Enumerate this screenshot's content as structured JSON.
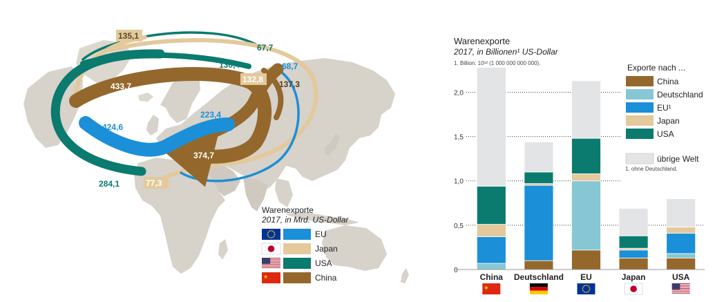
{
  "colors": {
    "China": "#94682c",
    "Deutschland": "#86c7d3",
    "EU": "#1b8fd8",
    "Japan": "#e3c99b",
    "USA": "#0a7b6e",
    "uebrige": "#e2e4e6",
    "map_land": "#d7d2ca",
    "map_land_dark": "#c6c0b6"
  },
  "map": {
    "legend_title": "Warenexporte",
    "legend_subtitle": "2017, in Mrd. US-Dollar",
    "legend_items": [
      {
        "label": "EU",
        "color_key": "EU",
        "flag": "eu-flag"
      },
      {
        "label": "Japan",
        "color_key": "Japan",
        "flag": "japan-flag"
      },
      {
        "label": "USA",
        "color_key": "USA",
        "flag": "usa-flag"
      },
      {
        "label": "China",
        "color_key": "China",
        "flag": "china-flag"
      }
    ],
    "flows": [
      {
        "label": "135,1",
        "series": "Japan"
      },
      {
        "label": "67,7",
        "series": "USA"
      },
      {
        "label": "130,4",
        "series": "USA"
      },
      {
        "label": "68,7",
        "series": "EU"
      },
      {
        "label": "132,8",
        "series": "Japan"
      },
      {
        "label": "137,3",
        "series": "China"
      },
      {
        "label": "433,7",
        "series": "China"
      },
      {
        "label": "424,6",
        "series": "EU"
      },
      {
        "label": "223,4",
        "series": "EU"
      },
      {
        "label": "374,7",
        "series": "China"
      },
      {
        "label": "284,1",
        "series": "USA"
      },
      {
        "label": "77,3",
        "series": "Japan"
      }
    ]
  },
  "chart_data": {
    "type": "bar",
    "stacked": true,
    "title": "Warenexporte",
    "subtitle": "2017, in Billionen¹ US-Dollar",
    "note": "1. Billion: 10¹² (1 000 000 000 000).",
    "categories": [
      "China",
      "Deutschland",
      "EU",
      "Japan",
      "USA"
    ],
    "category_flags": [
      "china-flag",
      "germany-flag",
      "eu-flag",
      "japan-flag",
      "usa-flag"
    ],
    "ylim": [
      0,
      2.3
    ],
    "yticks": [
      0,
      0.5,
      1.0,
      1.5,
      2.0
    ],
    "ytick_labels": [
      "0",
      "0,5",
      "1,0",
      "1,5",
      "2,0"
    ],
    "grid": "dotted horizontal",
    "legend_title": "Exporte nach ...",
    "legend_position": "top-right",
    "legend_note": "1. ohne Deutschland.",
    "series": [
      {
        "name": "China",
        "color_key": "China",
        "values": [
          0,
          0.1,
          0.22,
          0.13,
          0.13
        ]
      },
      {
        "name": "Deutschland",
        "color_key": "Deutschland",
        "values": [
          0.07,
          0,
          0.78,
          0,
          0.05
        ]
      },
      {
        "name": "EU¹",
        "color_key": "EU",
        "values": [
          0.3,
          0.85,
          0,
          0.09,
          0.23
        ]
      },
      {
        "name": "Japan",
        "color_key": "Japan",
        "values": [
          0.14,
          0.02,
          0.08,
          0.02,
          0.07
        ]
      },
      {
        "name": "USA",
        "color_key": "USA",
        "values": [
          0.43,
          0.13,
          0.4,
          0.14,
          0
        ]
      },
      {
        "name": "übrige Welt",
        "color_key": "uebrige",
        "values": [
          1.34,
          0.34,
          0.65,
          0.31,
          0.76
        ]
      }
    ]
  }
}
